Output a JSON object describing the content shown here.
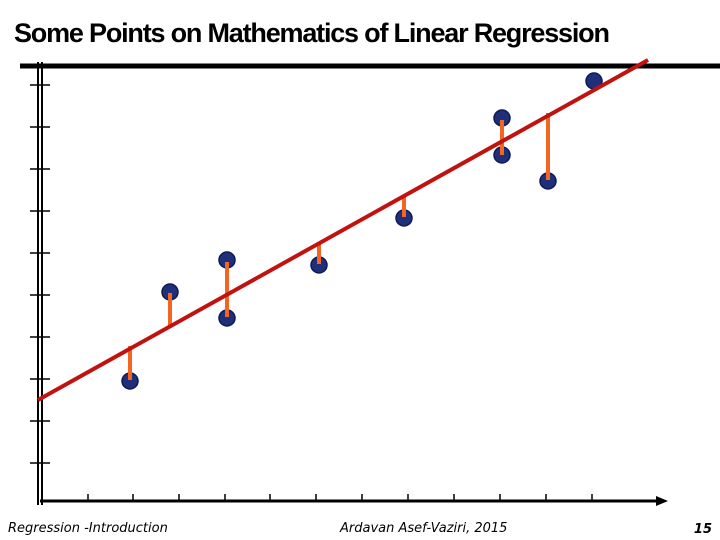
{
  "header": {
    "title": "Some Points on Mathematics of Linear Regression"
  },
  "footer": {
    "left": "Regression -Introduction",
    "center": "Ardavan Asef-Vaziri, 2015",
    "page": "15"
  }
}
